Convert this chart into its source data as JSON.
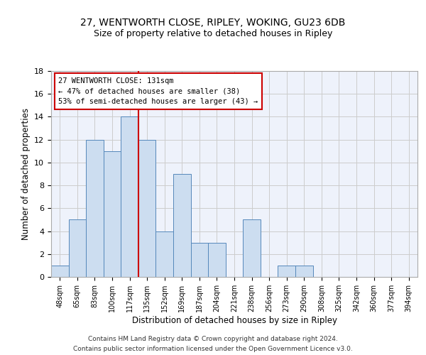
{
  "title": "27, WENTWORTH CLOSE, RIPLEY, WOKING, GU23 6DB",
  "subtitle": "Size of property relative to detached houses in Ripley",
  "xlabel": "Distribution of detached houses by size in Ripley",
  "ylabel": "Number of detached properties",
  "footer_line1": "Contains HM Land Registry data © Crown copyright and database right 2024.",
  "footer_line2": "Contains public sector information licensed under the Open Government Licence v3.0.",
  "categories": [
    "48sqm",
    "65sqm",
    "83sqm",
    "100sqm",
    "117sqm",
    "135sqm",
    "152sqm",
    "169sqm",
    "187sqm",
    "204sqm",
    "221sqm",
    "238sqm",
    "256sqm",
    "273sqm",
    "290sqm",
    "308sqm",
    "325sqm",
    "342sqm",
    "360sqm",
    "377sqm",
    "394sqm"
  ],
  "values": [
    1,
    5,
    12,
    11,
    14,
    12,
    4,
    9,
    3,
    3,
    0,
    5,
    0,
    1,
    1,
    0,
    0,
    0,
    0,
    0,
    0
  ],
  "bar_color": "#ccddf0",
  "bar_edge_color": "#5588bb",
  "reference_line_x": 5,
  "reference_line_color": "#cc0000",
  "annotation_text": "27 WENTWORTH CLOSE: 131sqm\n← 47% of detached houses are smaller (38)\n53% of semi-detached houses are larger (43) →",
  "annotation_box_color": "#cc0000",
  "ylim": [
    0,
    18
  ],
  "yticks": [
    0,
    2,
    4,
    6,
    8,
    10,
    12,
    14,
    16,
    18
  ],
  "grid_color": "#cccccc",
  "bg_color": "#eef2fb",
  "title_fontsize": 10,
  "annotation_fontsize": 7.5
}
